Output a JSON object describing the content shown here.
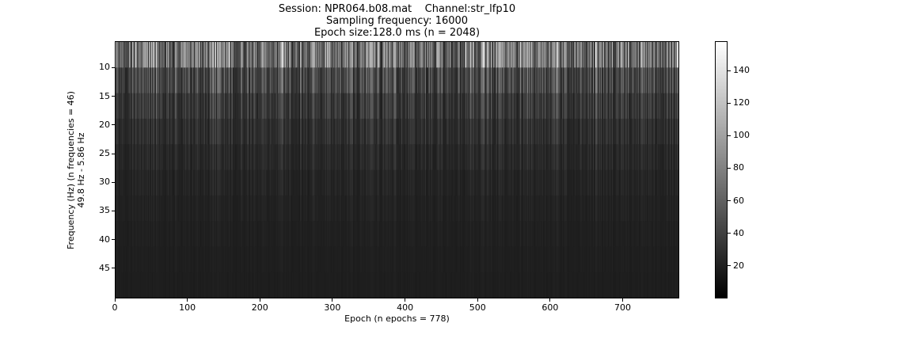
{
  "chart_data": {
    "type": "heatmap",
    "title_lines": [
      "Session: NPR064.b08.mat    Channel:str_lfp10",
      "Sampling frequency: 16000",
      "Epoch size:128.0 ms (n = 2048)"
    ],
    "xlabel": "Epoch (n epochs = 778)",
    "ylabel_lines": [
      "Frequency (Hz) (n frequencies = 46)",
      "49.8 Hz - 5.86 Hz"
    ],
    "x_ticks": [
      "0",
      "100",
      "200",
      "300",
      "400",
      "500",
      "600",
      "700"
    ],
    "x_tick_values": [
      0,
      100,
      200,
      300,
      400,
      500,
      600,
      700
    ],
    "xlim": [
      0,
      778
    ],
    "y_ticks": [
      "10",
      "15",
      "20",
      "25",
      "30",
      "35",
      "40",
      "45"
    ],
    "y_tick_values": [
      10,
      15,
      20,
      25,
      30,
      35,
      40,
      45
    ],
    "ylim_top_to_bottom": [
      5.86,
      49.8
    ],
    "n_epochs": 778,
    "n_frequencies": 46,
    "colorbar_ticks": [
      "20",
      "40",
      "60",
      "80",
      "100",
      "120",
      "140"
    ],
    "colorbar_tick_values": [
      20,
      40,
      60,
      80,
      100,
      120,
      140
    ],
    "colorbar_range": [
      0,
      158
    ],
    "colormap": "gray",
    "colormap_low": "#000000",
    "colormap_high": "#ffffff"
  }
}
